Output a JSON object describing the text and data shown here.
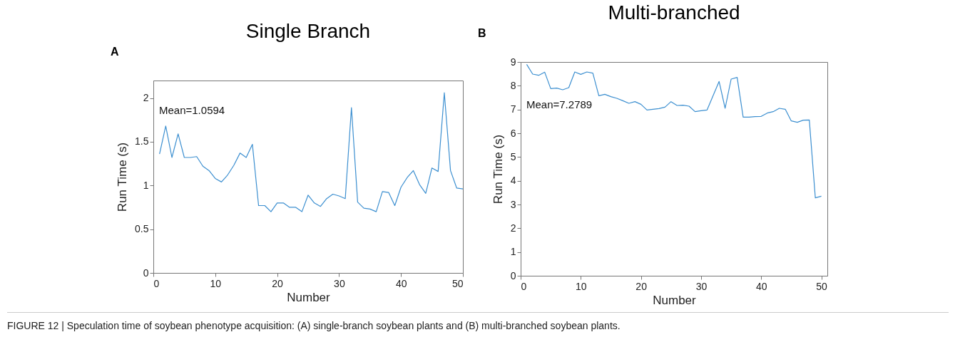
{
  "chart_data": [
    {
      "type": "line",
      "title": "Single Branch",
      "xlabel": "Number",
      "ylabel": "Run Time (s)",
      "annotations": [
        "A",
        "Mean=1.0594",
        "FIGURE 12 | Speculation time of soybean phenotype acquisition: (A) single-branch soybean plants and (B) multi-branched soybean plants."
      ],
      "x": [
        1,
        2,
        3,
        4,
        5,
        6,
        7,
        8,
        9,
        10,
        11,
        12,
        13,
        14,
        15,
        16,
        17,
        18,
        19,
        20,
        21,
        22,
        23,
        24,
        25,
        26,
        27,
        28,
        29,
        30,
        31,
        32,
        33,
        34,
        35,
        36,
        37,
        38,
        39,
        40,
        41,
        42,
        43,
        44,
        45,
        46,
        47,
        48,
        49,
        50
      ],
      "series": [
        {
          "color": "#3c8fd0",
          "values": [
            1.36,
            1.68,
            1.32,
            1.59,
            1.32,
            1.32,
            1.33,
            1.22,
            1.17,
            1.08,
            1.04,
            1.12,
            1.23,
            1.37,
            1.32,
            1.47,
            0.77,
            0.77,
            0.7,
            0.8,
            0.8,
            0.75,
            0.75,
            0.7,
            0.89,
            0.8,
            0.76,
            0.85,
            0.9,
            0.88,
            0.85,
            1.89,
            0.81,
            0.74,
            0.73,
            0.7,
            0.93,
            0.92,
            0.77,
            0.98,
            1.09,
            1.17,
            1.01,
            0.91,
            1.2,
            1.16,
            2.06,
            1.17,
            0.97,
            0.96
          ]
        }
      ],
      "xlim": [
        0,
        50
      ],
      "xticks": [
        0,
        10,
        20,
        30,
        40,
        50
      ],
      "ylim": [
        0,
        2.2
      ],
      "yticks": [
        0,
        0.5,
        1,
        1.5,
        2
      ],
      "grid": false
    },
    {
      "type": "line",
      "title": "Multi-branched",
      "xlabel": "Number",
      "ylabel": "Run Time (s)",
      "annotations": [
        "B",
        "Mean=7.2789"
      ],
      "x": [
        1,
        2,
        3,
        4,
        5,
        6,
        7,
        8,
        9,
        10,
        11,
        12,
        13,
        14,
        15,
        16,
        17,
        18,
        19,
        20,
        21,
        22,
        23,
        24,
        25,
        26,
        27,
        28,
        29,
        30,
        31,
        32,
        33,
        34,
        35,
        36,
        37,
        38,
        39,
        40,
        41,
        42,
        43,
        44,
        45,
        46,
        47,
        48,
        49,
        50
      ],
      "series": [
        {
          "color": "#3c8fd0",
          "values": [
            8.9,
            8.49,
            8.44,
            8.57,
            7.88,
            7.9,
            7.83,
            7.92,
            8.58,
            8.48,
            8.58,
            8.53,
            7.58,
            7.64,
            7.54,
            7.47,
            7.37,
            7.26,
            7.33,
            7.22,
            6.98,
            7.01,
            7.04,
            7.1,
            7.33,
            7.17,
            7.18,
            7.14,
            6.91,
            6.95,
            6.98,
            7.58,
            8.18,
            7.05,
            8.28,
            8.35,
            6.68,
            6.68,
            6.7,
            6.71,
            6.85,
            6.91,
            7.05,
            7.01,
            6.52,
            6.46,
            6.55,
            6.56,
            3.28,
            3.35
          ]
        }
      ],
      "xlim": [
        0,
        51
      ],
      "xticks": [
        0,
        10,
        20,
        30,
        40,
        50
      ],
      "ylim": [
        0,
        9
      ],
      "yticks": [
        0,
        1,
        2,
        3,
        4,
        5,
        6,
        7,
        8,
        9
      ],
      "grid": false
    }
  ]
}
